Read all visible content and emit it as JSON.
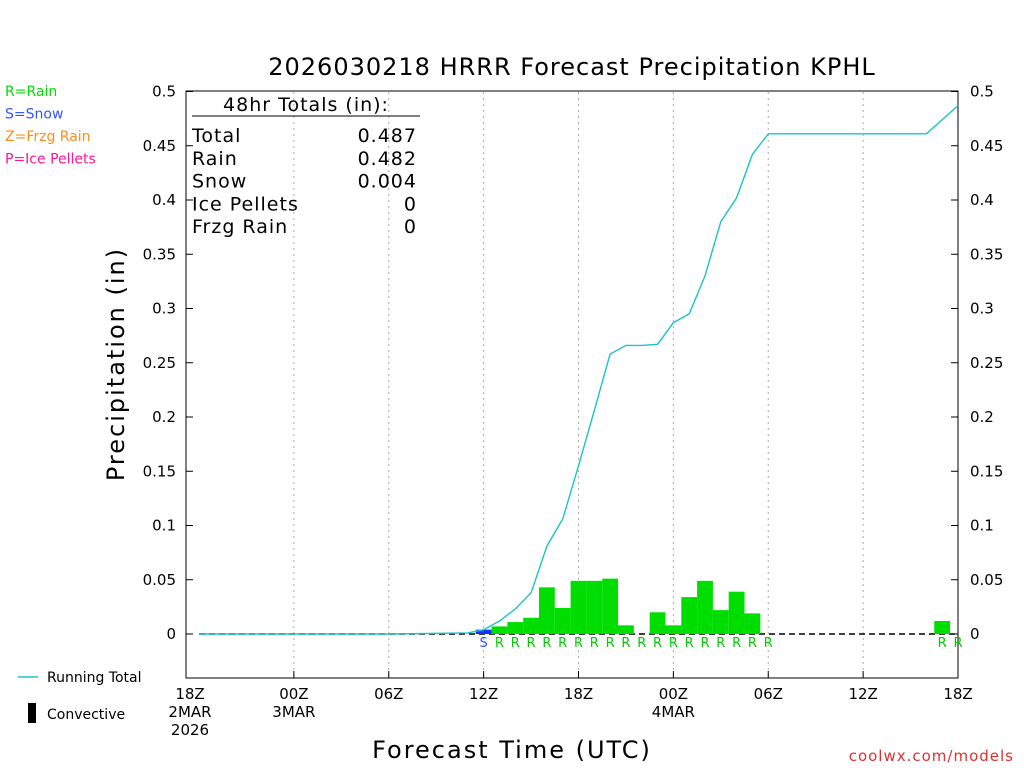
{
  "chart_data": {
    "type": "bar",
    "title": "2026030218 HRRR Forecast Precipitation KPHL",
    "xlabel": "Forecast Time (UTC)",
    "ylabel": "Precipitation (in)",
    "ylim": [
      -0.04,
      0.5
    ],
    "y_ticks": [
      "0",
      "0.05",
      "0.1",
      "0.15",
      "0.2",
      "0.25",
      "0.3",
      "0.35",
      "0.4",
      "0.45",
      "0.5"
    ],
    "x_ticks": [
      {
        "hour": 0,
        "lines": [
          "18Z",
          "2MAR",
          "2026"
        ]
      },
      {
        "hour": 6,
        "lines": [
          "00Z",
          "3MAR"
        ]
      },
      {
        "hour": 12,
        "lines": [
          "06Z"
        ]
      },
      {
        "hour": 18,
        "lines": [
          "12Z"
        ]
      },
      {
        "hour": 24,
        "lines": [
          "18Z"
        ]
      },
      {
        "hour": 30,
        "lines": [
          "00Z",
          "4MAR"
        ]
      },
      {
        "hour": 36,
        "lines": [
          "06Z"
        ]
      },
      {
        "hour": 42,
        "lines": [
          "12Z"
        ]
      },
      {
        "hour": 48,
        "lines": [
          "18Z"
        ]
      }
    ],
    "hourly_series": {
      "name": "Hourly precipitation",
      "hours": [
        18,
        19,
        20,
        21,
        22,
        23,
        24,
        25,
        26,
        27,
        28,
        29,
        30,
        31,
        32,
        33,
        34,
        35,
        36,
        47,
        48
      ],
      "values": [
        0.004,
        0.007,
        0.011,
        0.015,
        0.043,
        0.024,
        0.049,
        0.049,
        0.051,
        0.008,
        0.0,
        0.02,
        0.008,
        0.034,
        0.049,
        0.022,
        0.039,
        0.019,
        0.0,
        0.012,
        0.0
      ],
      "types": [
        "S",
        "R",
        "R",
        "R",
        "R",
        "R",
        "R",
        "R",
        "R",
        "R",
        "R",
        "R",
        "R",
        "R",
        "R",
        "R",
        "R",
        "R",
        "R",
        "R",
        "R"
      ]
    },
    "running_total": {
      "name": "Running Total",
      "hours": [
        0,
        12,
        17,
        18,
        19,
        20,
        21,
        22,
        23,
        24,
        25,
        26,
        27,
        28,
        29,
        30,
        31,
        32,
        33,
        34,
        35,
        36,
        46,
        48
      ],
      "values": [
        0,
        0,
        0.001,
        0.004,
        0.012,
        0.023,
        0.038,
        0.081,
        0.106,
        0.155,
        0.206,
        0.258,
        0.266,
        0.266,
        0.267,
        0.287,
        0.295,
        0.33,
        0.38,
        0.402,
        0.442,
        0.461,
        0.461,
        0.487
      ]
    },
    "totals": {
      "header": "48hr Totals (in):",
      "rows": [
        {
          "label": "Total",
          "value": "0.487"
        },
        {
          "label": "Rain",
          "value": "0.482"
        },
        {
          "label": "Snow",
          "value": "0.004"
        },
        {
          "label": "Ice Pellets",
          "value": "0"
        },
        {
          "label": "Frzg Rain",
          "value": "0"
        }
      ]
    },
    "ptype_legend": [
      {
        "text": "R=Rain",
        "color": "#00dd00"
      },
      {
        "text": "S=Snow",
        "color": "#3355ff"
      },
      {
        "text": "Z=Frzg Rain",
        "color": "#ff8c1a"
      },
      {
        "text": "P=Ice Pellets",
        "color": "#ff1493"
      }
    ],
    "legend": {
      "running_total": "Running Total",
      "convective": "Convective"
    },
    "credit": "coolwx.com/models",
    "colors": {
      "rain": "#00dd00",
      "snow": "#1133ff",
      "line": "#1cc3c9",
      "credit": "#e03030"
    }
  }
}
